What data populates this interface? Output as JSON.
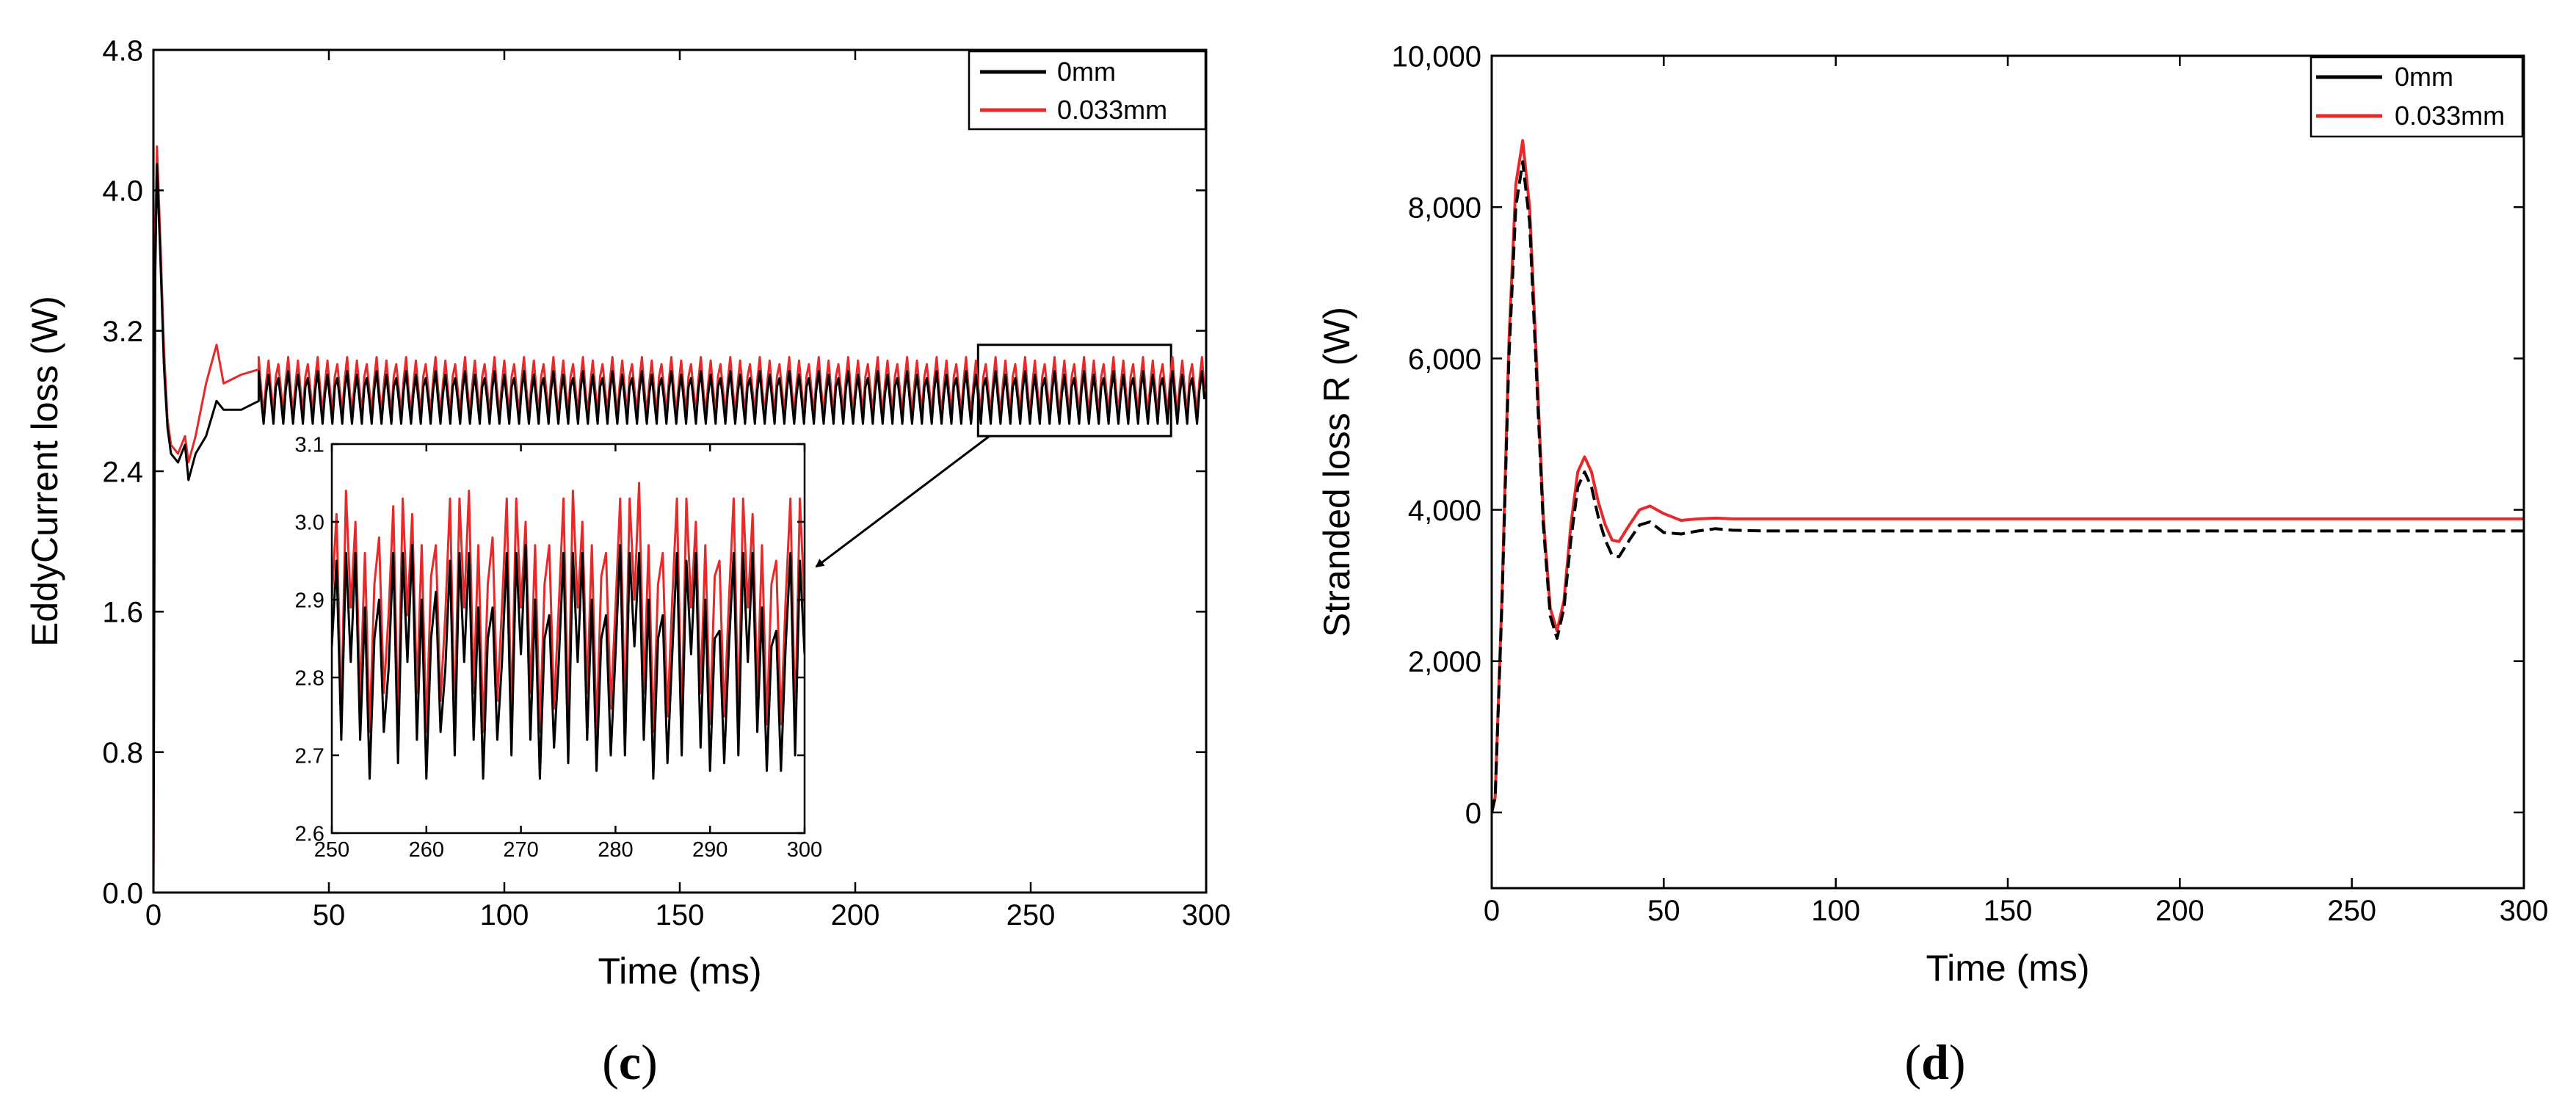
{
  "chart_data": [
    {
      "panel": "c",
      "type": "line",
      "xlabel": "Time (ms)",
      "ylabel": "EddyCurrent loss (W)",
      "xlim": [
        0,
        300
      ],
      "ylim": [
        0,
        4.8
      ],
      "xticks": [
        "0",
        "50",
        "100",
        "150",
        "200",
        "250",
        "300"
      ],
      "yticks": [
        "0.0",
        "0.8",
        "1.6",
        "2.4",
        "3.2",
        "4.0",
        "4.8"
      ],
      "legend": [
        "0mm",
        "0.033mm"
      ],
      "series": [
        {
          "name": "0mm",
          "color": "#000000",
          "transient_x": [
            0,
            0.5,
            1,
            2,
            3,
            4,
            5,
            7,
            9,
            10,
            12,
            15,
            18,
            20,
            25,
            30
          ],
          "transient_y": [
            0.0,
            3.5,
            4.15,
            3.6,
            3.0,
            2.65,
            2.5,
            2.45,
            2.55,
            2.35,
            2.5,
            2.6,
            2.8,
            2.75,
            2.75,
            2.8
          ],
          "steady_min": 2.67,
          "steady_max": 2.97,
          "steady_mean": 2.84
        },
        {
          "name": "0.033mm",
          "color": "#e8292a",
          "transient_x": [
            0,
            0.5,
            1,
            2,
            3,
            4,
            5,
            7,
            9,
            10,
            12,
            15,
            18,
            20,
            25,
            30
          ],
          "transient_y": [
            0.0,
            3.7,
            4.25,
            3.7,
            3.1,
            2.7,
            2.55,
            2.5,
            2.6,
            2.45,
            2.6,
            2.9,
            3.12,
            2.9,
            2.95,
            2.98
          ],
          "steady_min": 2.73,
          "steady_max": 3.05,
          "steady_mean": 2.9
        }
      ],
      "zoom_box": {
        "x_range": [
          235,
          290
        ],
        "y_range": [
          2.6,
          3.12
        ]
      },
      "inset": {
        "xlim": [
          250,
          300
        ],
        "ylim": [
          2.6,
          3.1
        ],
        "xticks": [
          "250",
          "260",
          "270",
          "280",
          "290",
          "300"
        ],
        "yticks": [
          "2.6",
          "2.7",
          "2.8",
          "2.9",
          "3.0",
          "3.1"
        ],
        "series_0mm_y": [
          2.84,
          2.95,
          2.72,
          2.96,
          2.82,
          2.96,
          2.72,
          2.89,
          2.67,
          2.85,
          2.9,
          2.73,
          2.81,
          2.96,
          2.69,
          2.96,
          2.82,
          2.97,
          2.72,
          2.9,
          2.67,
          2.85,
          2.91,
          2.73,
          2.81,
          2.95,
          2.7,
          2.96,
          2.82,
          2.96,
          2.72,
          2.89,
          2.67,
          2.85,
          2.89,
          2.72,
          2.82,
          2.96,
          2.7,
          2.96,
          2.83,
          2.97,
          2.72,
          2.9,
          2.67,
          2.85,
          2.88,
          2.71,
          2.82,
          2.96,
          2.69,
          2.96,
          2.82,
          2.96,
          2.72,
          2.9,
          2.68,
          2.85,
          2.88,
          2.7,
          2.83,
          2.97,
          2.7,
          2.96,
          2.84,
          2.96,
          2.72,
          2.9,
          2.67,
          2.85,
          2.88,
          2.69,
          2.83,
          2.96,
          2.7,
          2.95,
          2.83,
          2.96,
          2.71,
          2.9,
          2.68,
          2.85,
          2.86,
          2.69,
          2.84,
          2.96,
          2.7,
          2.96,
          2.82,
          2.96,
          2.73,
          2.89,
          2.68,
          2.84,
          2.86,
          2.68,
          2.84,
          2.96,
          2.7,
          2.95,
          2.83
        ],
        "series_0033mm_y": [
          2.9,
          3.01,
          2.75,
          3.04,
          2.89,
          3.0,
          2.77,
          2.96,
          2.73,
          2.92,
          2.98,
          2.78,
          2.88,
          3.02,
          2.74,
          3.03,
          2.88,
          3.01,
          2.78,
          2.97,
          2.73,
          2.93,
          2.97,
          2.77,
          2.88,
          3.03,
          2.74,
          3.03,
          2.89,
          3.04,
          2.78,
          2.97,
          2.73,
          2.92,
          2.98,
          2.77,
          2.89,
          3.03,
          2.75,
          3.03,
          2.89,
          3.0,
          2.78,
          2.97,
          2.73,
          2.92,
          2.97,
          2.76,
          2.89,
          3.03,
          2.74,
          3.04,
          2.89,
          3.0,
          2.78,
          2.97,
          2.73,
          2.93,
          2.96,
          2.76,
          2.89,
          3.03,
          2.75,
          3.03,
          2.9,
          3.05,
          2.78,
          2.97,
          2.73,
          2.92,
          2.96,
          2.75,
          2.9,
          3.03,
          2.74,
          3.03,
          2.89,
          3.0,
          2.78,
          2.97,
          2.74,
          2.93,
          2.95,
          2.75,
          2.9,
          3.03,
          2.75,
          3.03,
          2.89,
          3.01,
          2.78,
          2.97,
          2.74,
          2.92,
          2.95,
          2.74,
          2.9,
          3.03,
          2.74,
          3.03,
          2.89
        ]
      }
    },
    {
      "panel": "d",
      "type": "line",
      "xlabel": "Time (ms)",
      "ylabel": "Stranded loss R (W)",
      "xlim": [
        0,
        300
      ],
      "ylim": [
        -1000,
        10000
      ],
      "xticks": [
        "0",
        "50",
        "100",
        "150",
        "200",
        "250",
        "300"
      ],
      "yticks": [
        "0",
        "2,000",
        "4,000",
        "6,000",
        "8,000",
        "10,000"
      ],
      "legend": [
        "0mm",
        "0.033mm"
      ],
      "series": [
        {
          "name": "0mm",
          "color": "#000000",
          "x": [
            0,
            1,
            3,
            5,
            7,
            9,
            11,
            13,
            15,
            17,
            19,
            21,
            23,
            25,
            27,
            29,
            31,
            33,
            35,
            37,
            40,
            43,
            46,
            50,
            55,
            60,
            65,
            70,
            80,
            100,
            150,
            200,
            250,
            300
          ],
          "y": [
            0,
            200,
            2800,
            6000,
            8000,
            8600,
            7800,
            5800,
            3800,
            2600,
            2300,
            2700,
            3600,
            4300,
            4500,
            4300,
            3900,
            3600,
            3400,
            3380,
            3600,
            3800,
            3840,
            3700,
            3680,
            3720,
            3750,
            3730,
            3720,
            3720,
            3720,
            3720,
            3720,
            3720
          ]
        },
        {
          "name": "0.033mm",
          "color": "#e8292a",
          "x": [
            0,
            1,
            3,
            5,
            7,
            9,
            11,
            13,
            15,
            17,
            19,
            21,
            23,
            25,
            27,
            29,
            31,
            33,
            35,
            37,
            40,
            43,
            46,
            50,
            55,
            60,
            65,
            70,
            80,
            100,
            150,
            200,
            250,
            300
          ],
          "y": [
            0,
            200,
            2900,
            6200,
            8300,
            8880,
            8000,
            6000,
            3900,
            2700,
            2400,
            2800,
            3800,
            4500,
            4700,
            4500,
            4100,
            3800,
            3600,
            3580,
            3800,
            4000,
            4050,
            3950,
            3860,
            3880,
            3890,
            3880,
            3880,
            3880,
            3880,
            3880,
            3880,
            3880
          ]
        }
      ]
    }
  ],
  "panel_labels": {
    "c": {
      "open": "(",
      "letter": "c",
      "close": ")"
    },
    "d": {
      "open": "(",
      "letter": "d",
      "close": ")"
    }
  }
}
